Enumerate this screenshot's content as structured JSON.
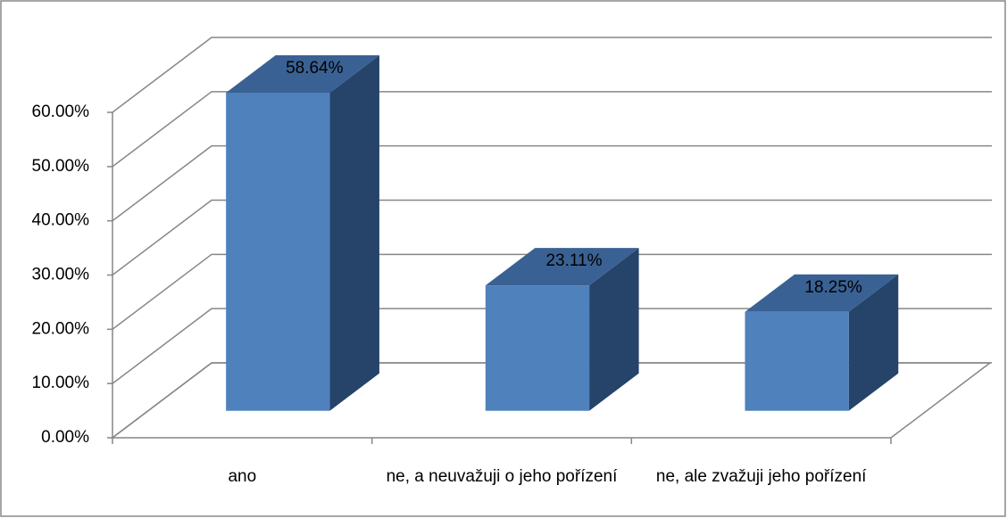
{
  "chart_data": {
    "type": "bar3d",
    "categories": [
      "ano",
      "ne, a neuvažuji o jeho pořízení",
      "ne, ale zvažuji jeho pořízení"
    ],
    "values": [
      58.64,
      23.11,
      18.25
    ],
    "value_labels": [
      "58.64%",
      "23.11%",
      "18.25%"
    ],
    "color": "#4f81bd",
    "ylim": [
      0,
      60
    ],
    "yticks": [
      {
        "value": 0,
        "label": "0.00%"
      },
      {
        "value": 10,
        "label": "10.00%"
      },
      {
        "value": 20,
        "label": "20.00%"
      },
      {
        "value": 30,
        "label": "30.00%"
      },
      {
        "value": 40,
        "label": "40.00%"
      },
      {
        "value": 50,
        "label": "50.00%"
      },
      {
        "value": 60,
        "label": "60.00%"
      }
    ],
    "grid": true
  }
}
